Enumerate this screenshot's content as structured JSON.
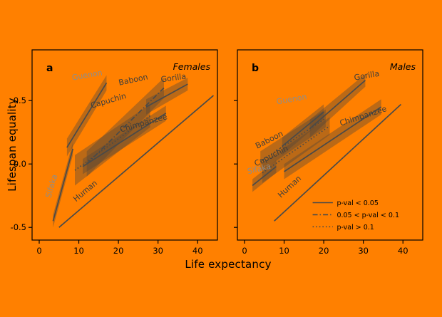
{
  "figure": {
    "xlabel": "Life expectancy",
    "ylabel": "Lifespan equality",
    "colors": {
      "background": "#FF8000",
      "axis": "#000000",
      "line": "#4a4a48",
      "band": "rgba(85,70,55,0.40)",
      "label_dark": "#3d3d3b",
      "label_light": "#8f8d89"
    }
  },
  "legend": {
    "items": [
      {
        "style": "solid",
        "label": "p-val < 0.05"
      },
      {
        "style": "dashdot",
        "label": "0.05 < p-val < 0.1"
      },
      {
        "style": "dotted",
        "label": "p-val > 0.1"
      }
    ]
  },
  "chart_data": [
    {
      "type": "line",
      "panel_label": "a",
      "subtitle": "Females",
      "xlabel": "Life expectancy",
      "ylabel": "Lifespan equality",
      "xlim": [
        -1.8,
        45
      ],
      "ylim": [
        -0.6,
        0.9
      ],
      "xticks": [
        0,
        10,
        20,
        30,
        40
      ],
      "yticks": [
        -0.5,
        0,
        0.5
      ],
      "show_ytick_labels": true,
      "show_legend": false,
      "series": [
        {
          "name": "Sifaka",
          "style": "solid",
          "x": [
            3.5,
            8.5
          ],
          "y": [
            -0.45,
            0.12
          ],
          "band": [
            0.05,
            0.05
          ],
          "label": {
            "x": 2.9,
            "y": -0.27,
            "rot": -74,
            "tone": "light"
          }
        },
        {
          "name": "Human",
          "style": "solid",
          "x": [
            5,
            44
          ],
          "y": [
            -0.5,
            0.54
          ],
          "band": null,
          "label": {
            "x": 9.3,
            "y": -0.3,
            "rot": -40,
            "tone": "dark"
          }
        },
        {
          "name": "Guenon",
          "style": "solid",
          "x": [
            7,
            17
          ],
          "y": [
            0.13,
            0.64
          ],
          "band": [
            0.07,
            0.06
          ],
          "label": {
            "x": 8.4,
            "y": 0.66,
            "rot": -10,
            "tone": "light"
          }
        },
        {
          "name": "Capuchin",
          "style": "dotted",
          "x": [
            9,
            28
          ],
          "y": [
            -0.05,
            0.38
          ],
          "band": [
            0.12,
            0.09
          ],
          "label": {
            "x": 13.2,
            "y": 0.44,
            "rot": -16,
            "tone": "dark"
          }
        },
        {
          "name": "Chimpanzee",
          "style": "solid",
          "x": [
            11,
            32
          ],
          "y": [
            -0.02,
            0.4
          ],
          "band": [
            0.06,
            0.06
          ],
          "label": {
            "x": 20.6,
            "y": 0.25,
            "rot": -16,
            "tone": "dark"
          }
        },
        {
          "name": "Baboon",
          "style": "dashdot",
          "x": [
            12,
            31.5
          ],
          "y": [
            0.0,
            0.6
          ],
          "band": [
            0.1,
            0.08
          ],
          "label": {
            "x": 20.2,
            "y": 0.62,
            "rot": -12,
            "tone": "dark"
          }
        },
        {
          "name": "Gorilla",
          "style": "solid",
          "x": [
            27,
            37.5
          ],
          "y": [
            0.45,
            0.63
          ],
          "band": [
            0.06,
            0.05
          ],
          "label": {
            "x": 30.8,
            "y": 0.645,
            "rot": -8,
            "tone": "dark"
          }
        }
      ]
    },
    {
      "type": "line",
      "panel_label": "b",
      "subtitle": "Males",
      "xlabel": "Life expectancy",
      "ylabel": "Lifespan equality",
      "xlim": [
        -1.8,
        45
      ],
      "ylim": [
        -0.6,
        0.9
      ],
      "xticks": [
        0,
        10,
        20,
        30,
        40
      ],
      "yticks": [
        -0.5,
        0,
        0.5
      ],
      "show_ytick_labels": false,
      "show_legend": true,
      "series": [
        {
          "name": "Sifaka",
          "style": "solid",
          "x": [
            2,
            8
          ],
          "y": [
            -0.17,
            -0.02
          ],
          "band": [
            0.05,
            0.05
          ],
          "label": {
            "x": 0.9,
            "y": -0.08,
            "rot": -14,
            "tone": "light"
          }
        },
        {
          "name": "Human",
          "style": "solid",
          "x": [
            7.5,
            39.5
          ],
          "y": [
            -0.45,
            0.47
          ],
          "band": null,
          "label": {
            "x": 9.2,
            "y": -0.27,
            "rot": -43,
            "tone": "dark"
          }
        },
        {
          "name": "Guenon",
          "style": "solid",
          "x": [
            9.5,
            20
          ],
          "y": [
            0.14,
            0.41
          ],
          "band": [
            0.07,
            0.06
          ],
          "label": {
            "x": 8.2,
            "y": 0.47,
            "rot": -10,
            "tone": "light"
          }
        },
        {
          "name": "Baboon",
          "style": "dotted",
          "x": [
            4,
            20.5
          ],
          "y": [
            0.02,
            0.36
          ],
          "band": [
            0.08,
            0.07
          ],
          "label": {
            "x": 3.2,
            "y": 0.12,
            "rot": -27,
            "tone": "dark"
          }
        },
        {
          "name": "Capuchin",
          "style": "dotted",
          "x": [
            4.5,
            21.5
          ],
          "y": [
            -0.07,
            0.3
          ],
          "band": [
            0.08,
            0.07
          ],
          "label": {
            "x": 2.9,
            "y": -0.02,
            "rot": -27,
            "tone": "dark"
          }
        },
        {
          "name": "Chimpanzee",
          "style": "solid",
          "x": [
            10,
            34.5
          ],
          "y": [
            -0.06,
            0.45
          ],
          "band": [
            0.06,
            0.06
          ],
          "label": {
            "x": 24.3,
            "y": 0.3,
            "rot": -18,
            "tone": "dark"
          }
        },
        {
          "name": "Gorilla",
          "style": "solid",
          "x": [
            16.5,
            30.5
          ],
          "y": [
            0.28,
            0.66
          ],
          "band": [
            0.07,
            0.05
          ],
          "label": {
            "x": 27.8,
            "y": 0.66,
            "rot": -10,
            "tone": "dark"
          }
        }
      ]
    }
  ]
}
